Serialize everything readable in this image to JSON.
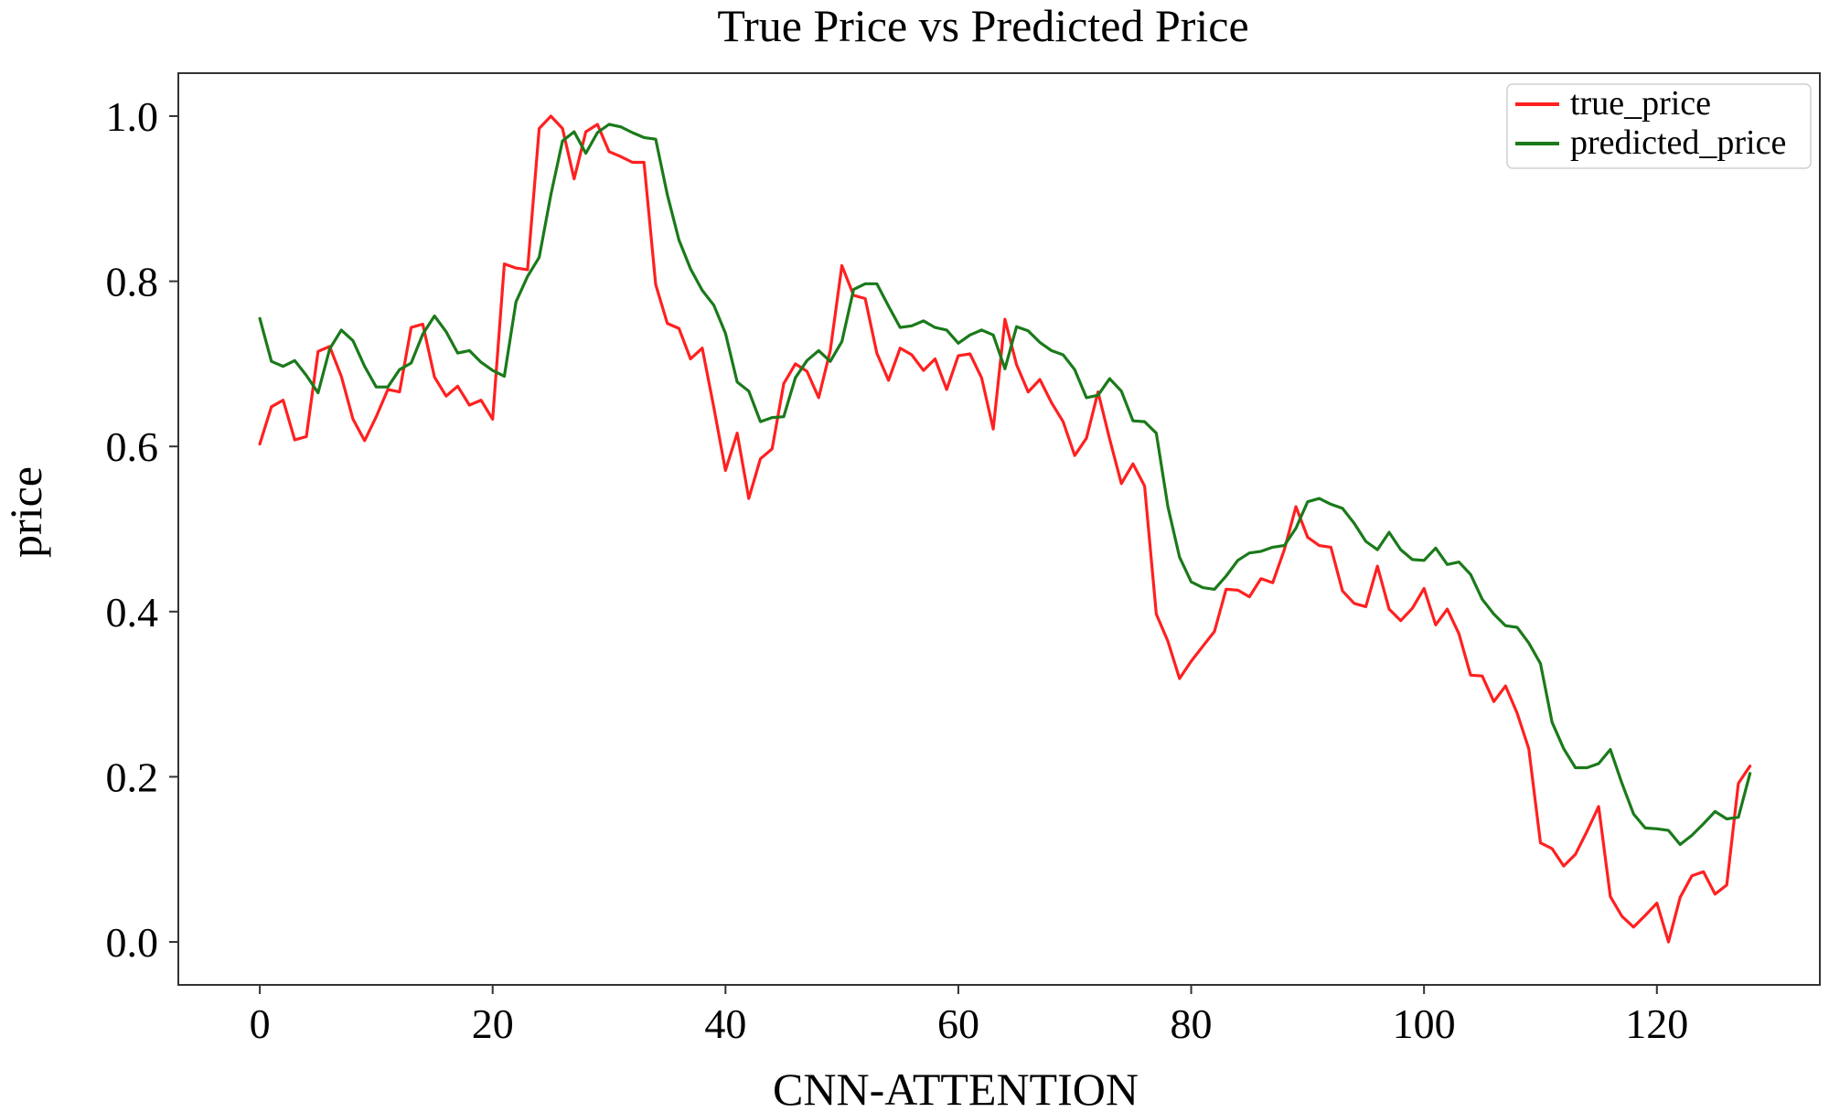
{
  "chart_data": {
    "type": "line",
    "title": "True Price vs Predicted Price",
    "xlabel": "CNN-ATTENTION",
    "ylabel": "price",
    "xlim": [
      -7,
      134
    ],
    "ylim": [
      -0.052,
      1.052
    ],
    "xticks": [
      0,
      20,
      40,
      60,
      80,
      100,
      120
    ],
    "xtick_labels": [
      "0",
      "20",
      "40",
      "60",
      "80",
      "100",
      "120"
    ],
    "yticks": [
      0.0,
      0.2,
      0.4,
      0.6,
      0.8,
      1.0
    ],
    "ytick_labels": [
      "0.0",
      "0.2",
      "0.4",
      "0.6",
      "0.8",
      "1.0"
    ],
    "grid": false,
    "legend_position": "top-right",
    "x": [
      0,
      1,
      2,
      3,
      4,
      5,
      6,
      7,
      8,
      9,
      10,
      11,
      12,
      13,
      14,
      15,
      16,
      17,
      18,
      19,
      20,
      21,
      22,
      23,
      24,
      25,
      26,
      27,
      28,
      29,
      30,
      31,
      32,
      33,
      34,
      35,
      36,
      37,
      38,
      39,
      40,
      41,
      42,
      43,
      44,
      45,
      46,
      47,
      48,
      49,
      50,
      51,
      52,
      53,
      54,
      55,
      56,
      57,
      58,
      59,
      60,
      61,
      62,
      63,
      64,
      65,
      66,
      67,
      68,
      69,
      70,
      71,
      72,
      73,
      74,
      75,
      76,
      77,
      78,
      79,
      80,
      81,
      82,
      83,
      84,
      85,
      86,
      87,
      88,
      89,
      90,
      91,
      92,
      93,
      94,
      95,
      96,
      97,
      98,
      99,
      100,
      101,
      102,
      103,
      104,
      105,
      106,
      107,
      108,
      109,
      110,
      111,
      112,
      113,
      114,
      115,
      116,
      117,
      118,
      119,
      120,
      121,
      122,
      123,
      124,
      125,
      126,
      127,
      128
    ],
    "series": [
      {
        "name": "true_price",
        "color": "#ff2020",
        "values": [
          0.603,
          0.648,
          0.656,
          0.608,
          0.612,
          0.715,
          0.721,
          0.685,
          0.633,
          0.607,
          0.636,
          0.669,
          0.666,
          0.744,
          0.748,
          0.684,
          0.661,
          0.673,
          0.65,
          0.656,
          0.633,
          0.821,
          0.816,
          0.814,
          0.985,
          1.0,
          0.985,
          0.924,
          0.981,
          0.99,
          0.957,
          0.951,
          0.944,
          0.944,
          0.796,
          0.749,
          0.743,
          0.706,
          0.719,
          0.647,
          0.571,
          0.616,
          0.537,
          0.585,
          0.597,
          0.676,
          0.7,
          0.691,
          0.659,
          0.716,
          0.819,
          0.783,
          0.779,
          0.713,
          0.68,
          0.719,
          0.711,
          0.692,
          0.706,
          0.669,
          0.71,
          0.712,
          0.683,
          0.621,
          0.754,
          0.699,
          0.666,
          0.681,
          0.653,
          0.63,
          0.589,
          0.61,
          0.666,
          0.609,
          0.555,
          0.579,
          0.552,
          0.397,
          0.364,
          0.319,
          0.34,
          0.358,
          0.376,
          0.427,
          0.426,
          0.418,
          0.44,
          0.435,
          0.475,
          0.527,
          0.49,
          0.48,
          0.478,
          0.425,
          0.41,
          0.406,
          0.455,
          0.403,
          0.389,
          0.404,
          0.428,
          0.384,
          0.403,
          0.373,
          0.323,
          0.322,
          0.291,
          0.31,
          0.277,
          0.234,
          0.12,
          0.113,
          0.092,
          0.106,
          0.134,
          0.164,
          0.055,
          0.031,
          0.018,
          0.032,
          0.047,
          0.0,
          0.054,
          0.08,
          0.085,
          0.058,
          0.069,
          0.192,
          0.213
        ]
      },
      {
        "name": "predicted_price",
        "color": "#1a7a1a",
        "values": [
          0.755,
          0.703,
          0.697,
          0.704,
          0.686,
          0.665,
          0.718,
          0.741,
          0.728,
          0.697,
          0.672,
          0.672,
          0.693,
          0.701,
          0.736,
          0.758,
          0.739,
          0.713,
          0.716,
          0.702,
          0.692,
          0.685,
          0.775,
          0.806,
          0.829,
          0.905,
          0.97,
          0.981,
          0.955,
          0.98,
          0.99,
          0.987,
          0.98,
          0.974,
          0.972,
          0.905,
          0.85,
          0.815,
          0.789,
          0.771,
          0.737,
          0.678,
          0.667,
          0.63,
          0.635,
          0.636,
          0.683,
          0.704,
          0.716,
          0.703,
          0.727,
          0.79,
          0.797,
          0.797,
          0.77,
          0.744,
          0.746,
          0.752,
          0.744,
          0.741,
          0.725,
          0.735,
          0.741,
          0.735,
          0.694,
          0.745,
          0.74,
          0.726,
          0.716,
          0.711,
          0.693,
          0.659,
          0.662,
          0.682,
          0.667,
          0.631,
          0.63,
          0.616,
          0.527,
          0.466,
          0.436,
          0.429,
          0.427,
          0.443,
          0.462,
          0.471,
          0.473,
          0.478,
          0.48,
          0.501,
          0.533,
          0.537,
          0.53,
          0.525,
          0.507,
          0.485,
          0.475,
          0.496,
          0.475,
          0.463,
          0.462,
          0.477,
          0.457,
          0.46,
          0.445,
          0.415,
          0.397,
          0.383,
          0.381,
          0.362,
          0.337,
          0.266,
          0.234,
          0.211,
          0.211,
          0.216,
          0.233,
          0.192,
          0.155,
          0.138,
          0.137,
          0.135,
          0.118,
          0.129,
          0.143,
          0.158,
          0.149,
          0.151,
          0.204
        ]
      }
    ]
  }
}
